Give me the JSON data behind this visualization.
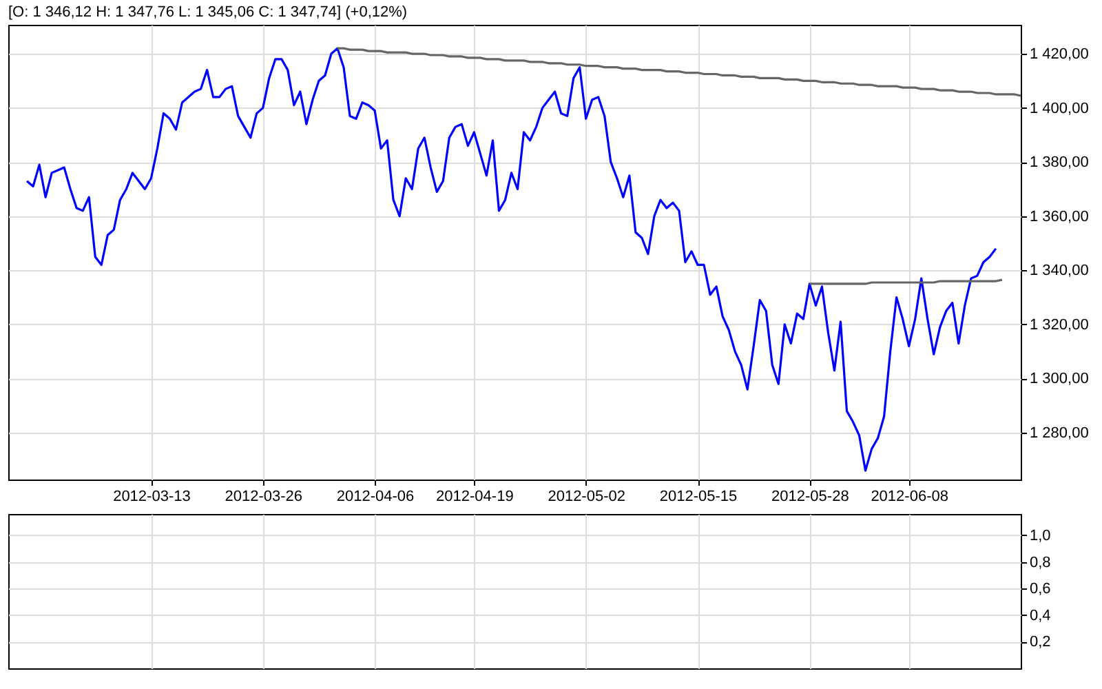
{
  "chart_data": [
    {
      "type": "line",
      "title": "[O: 1 346,12 H: 1 347,76 L: 1 345,06 C: 1 347,74] (+0,12%)",
      "categories": [
        null,
        null,
        null,
        null,
        null,
        null,
        null,
        null,
        null,
        null,
        null,
        null,
        null,
        null,
        null,
        null,
        null,
        null,
        null,
        null,
        null,
        null,
        null,
        "2012-03-13",
        null,
        null,
        null,
        null,
        null,
        null,
        null,
        null,
        null,
        null,
        null,
        null,
        null,
        null,
        null,
        null,
        null,
        "2012-03-26",
        null,
        null,
        null,
        null,
        null,
        null,
        null,
        null,
        null,
        null,
        null,
        null,
        null,
        null,
        null,
        null,
        null,
        "2012-04-06",
        null,
        null,
        null,
        null,
        null,
        null,
        null,
        null,
        null,
        null,
        null,
        null,
        null,
        null,
        null,
        "2012-04-19",
        null,
        null,
        null,
        null,
        null,
        null,
        null,
        null,
        null,
        null,
        null,
        null,
        null,
        null,
        null,
        null,
        null,
        "2012-05-02",
        null,
        null,
        null,
        null,
        null,
        null,
        null,
        null,
        null,
        null,
        null,
        null,
        null,
        null,
        null,
        null,
        null,
        "2012-05-15",
        null,
        null,
        null,
        null,
        null,
        null,
        null,
        null,
        null,
        null,
        null,
        null,
        null,
        null,
        null,
        null,
        null,
        "2012-05-28",
        null,
        null,
        null,
        null,
        null,
        null,
        null,
        null,
        null,
        null,
        null,
        null,
        null,
        null,
        null,
        "2012-06-08",
        null,
        null,
        null,
        null,
        null,
        null,
        null,
        null,
        null,
        null,
        null,
        null,
        null,
        null,
        null,
        null,
        null,
        null
      ],
      "ylim": [
        1262.7,
        1430.7
      ],
      "yticks": [
        {
          "value": 1280,
          "label": "1 280,00"
        },
        {
          "value": 1300,
          "label": "1 300,00"
        },
        {
          "value": 1320,
          "label": "1 320,00"
        },
        {
          "value": 1340,
          "label": "1 340,00"
        },
        {
          "value": 1360,
          "label": "1 360,00"
        },
        {
          "value": 1380,
          "label": "1 380,00"
        },
        {
          "value": 1400,
          "label": "1 400,00"
        },
        {
          "value": 1420,
          "label": "1 420,00"
        }
      ],
      "grid": true,
      "series": [
        {
          "color": "#0000ff",
          "values": [
            null,
            null,
            null,
            1373,
            1371,
            1379,
            1367,
            1376,
            1377,
            1378,
            1370,
            1363,
            1362,
            1367,
            1345,
            1342,
            1353,
            1355,
            1366,
            1370,
            1376,
            1373,
            1370,
            1374,
            1385,
            1398,
            1396,
            1392,
            1402,
            1404,
            1406,
            1407,
            1414,
            1404,
            1404,
            1407,
            1408,
            1397,
            1393,
            1389,
            1398,
            1400,
            1411,
            1418,
            1418,
            1414,
            1401,
            1406,
            1394,
            1403,
            1410,
            1412,
            1420,
            1422,
            1415,
            1397,
            1396,
            1402,
            1401,
            1399,
            1385,
            1388,
            1366,
            1360,
            1374,
            1370,
            1385,
            1389,
            1378,
            1369,
            1373,
            1389,
            1393,
            1394,
            1386,
            1391,
            1383,
            1375,
            1388,
            1362,
            1366,
            1376,
            1370,
            1391,
            1388,
            1393,
            1400,
            1403,
            1406,
            1398,
            1397,
            1411,
            1415,
            1396,
            1403,
            1404,
            1397,
            1380,
            1374,
            1367,
            1375,
            1354,
            1352,
            1346,
            1360,
            1366,
            1363,
            1365,
            1362,
            1343,
            1347,
            1342,
            1342,
            1331,
            1334,
            1323,
            1318,
            1310,
            1305,
            1296,
            1312,
            1329,
            1325,
            1305,
            1298,
            1320,
            1313,
            1324,
            1322,
            1335,
            1327,
            1334,
            1317,
            1303,
            1321,
            1288,
            1284,
            1279,
            1266,
            1274,
            1278,
            1286,
            1310,
            1330,
            1322,
            1312,
            1322,
            1337,
            1322,
            1309,
            1319,
            1325,
            1328,
            1313,
            1327,
            1337,
            1338,
            1343,
            1345,
            1348,
            null,
            null,
            null,
            null
          ]
        },
        {
          "type": "line",
          "color": "#666666",
          "values": [
            null,
            null,
            null,
            null,
            null,
            null,
            null,
            null,
            null,
            null,
            null,
            null,
            null,
            null,
            null,
            null,
            null,
            null,
            null,
            null,
            null,
            null,
            null,
            null,
            null,
            null,
            null,
            null,
            null,
            null,
            null,
            null,
            null,
            null,
            null,
            null,
            null,
            null,
            null,
            null,
            null,
            null,
            null,
            null,
            null,
            null,
            null,
            null,
            null,
            null,
            null,
            null,
            null,
            1422,
            1422,
            1421.5,
            1421.5,
            1421.5,
            1421,
            1421,
            1421,
            1420.5,
            1420.5,
            1420.5,
            1420.5,
            1420,
            1420,
            1420,
            1419.5,
            1419.5,
            1419.5,
            1419,
            1419,
            1419,
            1418.5,
            1418.5,
            1418.5,
            1418,
            1418,
            1418,
            1417.5,
            1417.5,
            1417.5,
            1417.5,
            1417,
            1417,
            1417,
            1416.5,
            1416.5,
            1416.5,
            1416,
            1416,
            1416,
            1415.5,
            1415.5,
            1415.5,
            1415,
            1415,
            1415,
            1414.5,
            1414.5,
            1414.5,
            1414,
            1414,
            1414,
            1414,
            1413.5,
            1413.5,
            1413.5,
            1413,
            1413,
            1413,
            1412.5,
            1412.5,
            1412.5,
            1412,
            1412,
            1412,
            1411.5,
            1411.5,
            1411.5,
            1411,
            1411,
            1411,
            1411,
            1410.5,
            1410.5,
            1410.5,
            1410,
            1410,
            1410,
            1409.5,
            1409.5,
            1409.5,
            1409,
            1409,
            1409,
            1408.5,
            1408.5,
            1408.5,
            1408,
            1408,
            1408,
            1408,
            1407.5,
            1407.5,
            1407.5,
            1407,
            1407,
            1407,
            1406.5,
            1406.5,
            1406.5,
            1406,
            1406,
            1406,
            1405.5,
            1405.5,
            1405.5,
            1405,
            1405,
            1405,
            1405,
            1404.5
          ]
        },
        {
          "type": "line",
          "color": "#666666",
          "values": [
            null,
            null,
            null,
            null,
            null,
            null,
            null,
            null,
            null,
            null,
            null,
            null,
            null,
            null,
            null,
            null,
            null,
            null,
            null,
            null,
            null,
            null,
            null,
            null,
            null,
            null,
            null,
            null,
            null,
            null,
            null,
            null,
            null,
            null,
            null,
            null,
            null,
            null,
            null,
            null,
            null,
            null,
            null,
            null,
            null,
            null,
            null,
            null,
            null,
            null,
            null,
            null,
            null,
            null,
            null,
            null,
            null,
            null,
            null,
            null,
            null,
            null,
            null,
            null,
            null,
            null,
            null,
            null,
            null,
            null,
            null,
            null,
            null,
            null,
            null,
            null,
            null,
            null,
            null,
            null,
            null,
            null,
            null,
            null,
            null,
            null,
            null,
            null,
            null,
            null,
            null,
            null,
            null,
            null,
            null,
            null,
            null,
            null,
            null,
            null,
            null,
            null,
            null,
            null,
            null,
            null,
            null,
            null,
            null,
            null,
            null,
            null,
            null,
            null,
            null,
            null,
            null,
            null,
            null,
            null,
            null,
            null,
            null,
            null,
            null,
            null,
            null,
            null,
            null,
            1335,
            1335,
            1335,
            1335,
            1335,
            1335,
            1335,
            1335,
            1335,
            1335,
            1335.5,
            1335.5,
            1335.5,
            1335.5,
            1335.5,
            1335.5,
            1335.5,
            1335.5,
            1335.5,
            1335.5,
            1335.5,
            1336,
            1336,
            1336,
            1336,
            1336,
            1336,
            1336,
            1336,
            1336,
            1336,
            1336.5,
            null,
            null,
            null
          ]
        }
      ]
    },
    {
      "type": "line",
      "categories": [
        null,
        null,
        null,
        null,
        null,
        null,
        null,
        null,
        null,
        null,
        null,
        null,
        null,
        null,
        null,
        null,
        null,
        null,
        null,
        null,
        null,
        null,
        null,
        "2012-03-13",
        null,
        null,
        null,
        null,
        null,
        null,
        null,
        null,
        null,
        null,
        null,
        null,
        null,
        null,
        null,
        null,
        null,
        "2012-03-26",
        null,
        null,
        null,
        null,
        null,
        null,
        null,
        null,
        null,
        null,
        null,
        null,
        null,
        null,
        null,
        null,
        null,
        "2012-04-06",
        null,
        null,
        null,
        null,
        null,
        null,
        null,
        null,
        null,
        null,
        null,
        null,
        null,
        null,
        null,
        "2012-04-19",
        null,
        null,
        null,
        null,
        null,
        null,
        null,
        null,
        null,
        null,
        null,
        null,
        null,
        null,
        null,
        null,
        null,
        "2012-05-02",
        null,
        null,
        null,
        null,
        null,
        null,
        null,
        null,
        null,
        null,
        null,
        null,
        null,
        null,
        null,
        null,
        null,
        "2012-05-15",
        null,
        null,
        null,
        null,
        null,
        null,
        null,
        null,
        null,
        null,
        null,
        null,
        null,
        null,
        null,
        null,
        null,
        "2012-05-28",
        null,
        null,
        null,
        null,
        null,
        null,
        null,
        null,
        null,
        null,
        null,
        null,
        null,
        null,
        null,
        "2012-06-08",
        null,
        null,
        null,
        null,
        null,
        null,
        null,
        null,
        null,
        null,
        null,
        null,
        null,
        null,
        null,
        null,
        null,
        null
      ],
      "ylim": [
        0,
        1.16
      ],
      "yticks": [
        {
          "value": 0.2,
          "label": "0,2"
        },
        {
          "value": 0.4,
          "label": "0,4"
        },
        {
          "value": 0.6,
          "label": "0,6"
        },
        {
          "value": 0.8,
          "label": "0,8"
        },
        {
          "value": 1.0,
          "label": "1,0"
        }
      ],
      "grid": true,
      "tick_labels": "y"
    }
  ]
}
